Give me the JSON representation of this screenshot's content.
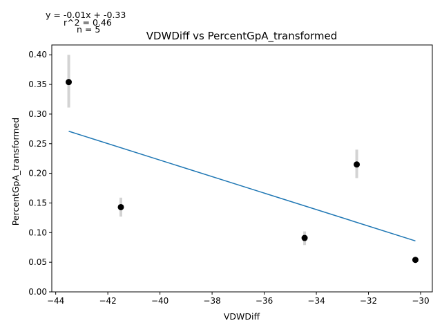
{
  "chart_data": {
    "type": "scatter",
    "title": "VDWDiff vs PercentGpA_transformed",
    "xlabel": "VDWDiff",
    "ylabel": "PercentGpA_transformed",
    "xlim": [
      -44.15,
      -29.55
    ],
    "ylim": [
      0.0,
      0.4166
    ],
    "xticks": [
      -44,
      -42,
      -40,
      -38,
      -36,
      -34,
      -32,
      -30
    ],
    "xtick_labels": [
      "−44",
      "−42",
      "−40",
      "−38",
      "−36",
      "−34",
      "−32",
      "−30"
    ],
    "yticks": [
      0.0,
      0.05,
      0.1,
      0.15,
      0.2,
      0.25,
      0.3,
      0.35,
      0.4
    ],
    "ytick_labels": [
      "0.00",
      "0.05",
      "0.10",
      "0.15",
      "0.20",
      "0.25",
      "0.30",
      "0.35",
      "0.40"
    ],
    "grid": false,
    "points": [
      {
        "x": -43.5,
        "y": 0.354,
        "err_low": 0.311,
        "err_high": 0.4
      },
      {
        "x": -41.5,
        "y": 0.143,
        "err_low": 0.127,
        "err_high": 0.159
      },
      {
        "x": -34.45,
        "y": 0.091,
        "err_low": 0.079,
        "err_high": 0.102
      },
      {
        "x": -32.45,
        "y": 0.215,
        "err_low": 0.192,
        "err_high": 0.24
      },
      {
        "x": -30.2,
        "y": 0.054,
        "err_low": 0.054,
        "err_high": 0.054
      }
    ],
    "fit_line": {
      "x": [
        -43.5,
        -30.2
      ],
      "y": [
        0.271,
        0.086
      ]
    },
    "annotations": [
      "y = -0.01x + -0.33",
      "r^2 = 0.46",
      "n = 5"
    ],
    "colors": {
      "points": "#000000",
      "errorbars": "#d3d3d3",
      "fit": "#1f77b4",
      "axes": "#000000"
    }
  }
}
